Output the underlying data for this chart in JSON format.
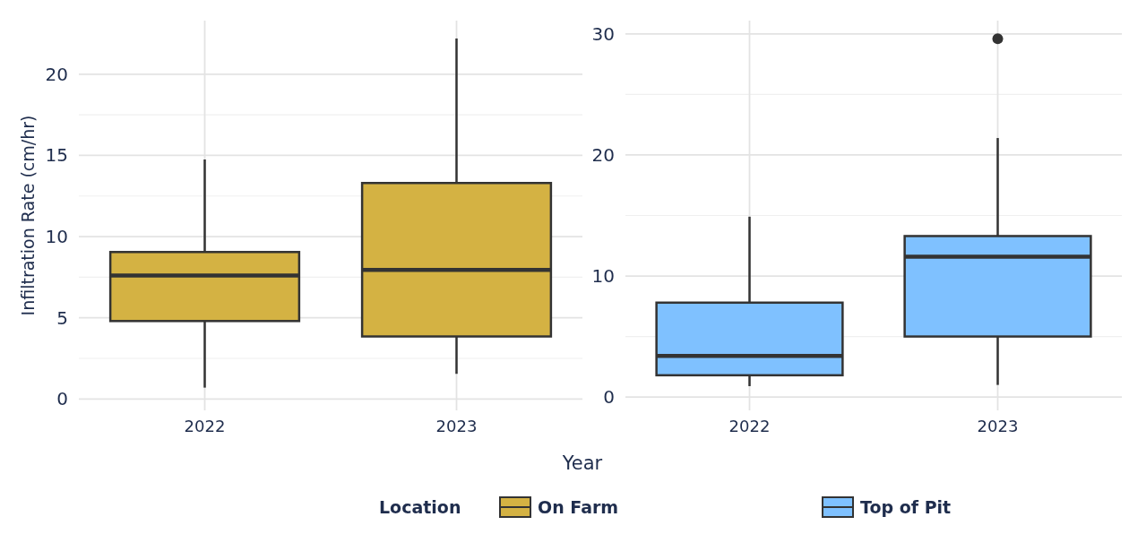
{
  "chart_data": [
    {
      "type": "box",
      "xlabel": "Year",
      "ylabel": "Infiltration Rate (cm/hr)",
      "legend_title": "Location",
      "legend": "bottom",
      "grid": true,
      "categories": [
        "2022",
        "2023"
      ],
      "ylim": [
        -0.7,
        23.3
      ],
      "yticks": [
        0,
        5,
        10,
        15,
        20
      ],
      "series": [
        {
          "name": "On Farm",
          "color": "#d4b243",
          "boxes": [
            {
              "low": 0.7,
              "q1": 4.8,
              "median": 7.6,
              "q3": 9.05,
              "high": 14.75
            },
            {
              "low": 1.55,
              "q1": 3.85,
              "median": 7.95,
              "q3": 13.3,
              "high": 22.2
            }
          ]
        }
      ]
    },
    {
      "type": "box",
      "legend": "bottom",
      "grid": true,
      "categories": [
        "2022",
        "2023"
      ],
      "ylim": [
        -1.1,
        31.1
      ],
      "yticks": [
        0,
        10,
        20,
        30
      ],
      "series": [
        {
          "name": "Top of Pit",
          "color": "#7fc1ff",
          "boxes": [
            {
              "low": 0.9,
              "q1": 1.8,
              "median": 3.4,
              "q3": 7.8,
              "high": 14.9
            },
            {
              "low": 1.0,
              "q1": 5.0,
              "median": 11.6,
              "q3": 13.3,
              "high": 21.4,
              "outliers": [
                29.6
              ]
            }
          ]
        }
      ]
    }
  ]
}
